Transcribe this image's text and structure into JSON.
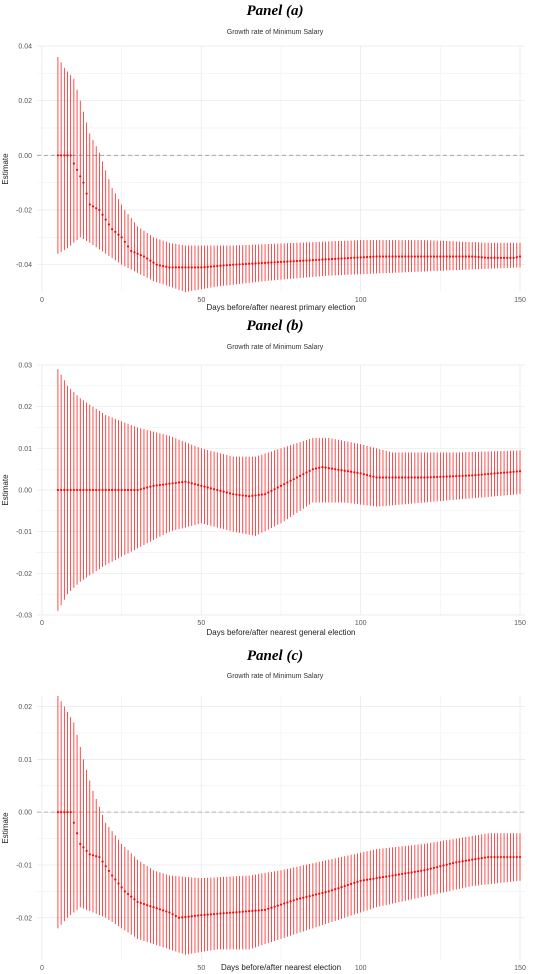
{
  "chart_data": [
    {
      "type": "scatter",
      "panel_title": "Panel (a)",
      "title": "Growth rate of Minimum Salary",
      "xlabel": "Days before/after nearest primary election",
      "ylabel": "Estimate",
      "xlim": [
        0,
        150
      ],
      "ylim": [
        -0.05,
        0.04
      ],
      "x_ticks": [
        "0",
        "50",
        "100",
        "150"
      ],
      "y_ticks": [
        "0.04",
        "0.02",
        "0.00",
        "-0.02",
        "-0.04"
      ],
      "y_tick_values": [
        0.04,
        0.02,
        0.0,
        -0.02,
        -0.04
      ],
      "reference_line": 0,
      "color": "#ff0000",
      "x_start": 5,
      "x_end": 150,
      "estimate_knots": [
        [
          5,
          0
        ],
        [
          9,
          0
        ],
        [
          10,
          -0.003
        ],
        [
          13,
          -0.01
        ],
        [
          15,
          -0.018
        ],
        [
          18,
          -0.02
        ],
        [
          22,
          -0.027
        ],
        [
          25,
          -0.03
        ],
        [
          28,
          -0.035
        ],
        [
          32,
          -0.037
        ],
        [
          36,
          -0.04
        ],
        [
          40,
          -0.041
        ],
        [
          50,
          -0.041
        ],
        [
          60,
          -0.04
        ],
        [
          75,
          -0.039
        ],
        [
          90,
          -0.038
        ],
        [
          105,
          -0.037
        ],
        [
          120,
          -0.037
        ],
        [
          135,
          -0.037
        ],
        [
          140,
          -0.0375
        ],
        [
          148,
          -0.0375
        ],
        [
          150,
          -0.037
        ]
      ],
      "lower_knots": [
        [
          5,
          -0.036
        ],
        [
          8,
          -0.034
        ],
        [
          12,
          -0.03
        ],
        [
          15,
          -0.032
        ],
        [
          20,
          -0.036
        ],
        [
          25,
          -0.04
        ],
        [
          30,
          -0.043
        ],
        [
          35,
          -0.046
        ],
        [
          40,
          -0.048
        ],
        [
          45,
          -0.05
        ],
        [
          55,
          -0.048
        ],
        [
          70,
          -0.046
        ],
        [
          90,
          -0.044
        ],
        [
          110,
          -0.043
        ],
        [
          130,
          -0.042
        ],
        [
          150,
          -0.041
        ]
      ],
      "upper_knots": [
        [
          5,
          0.036
        ],
        [
          7,
          0.032
        ],
        [
          10,
          0.028
        ],
        [
          12,
          0.02
        ],
        [
          15,
          0.008
        ],
        [
          18,
          0.001
        ],
        [
          22,
          -0.012
        ],
        [
          26,
          -0.02
        ],
        [
          30,
          -0.026
        ],
        [
          35,
          -0.03
        ],
        [
          40,
          -0.032
        ],
        [
          45,
          -0.033
        ],
        [
          60,
          -0.033
        ],
        [
          80,
          -0.032
        ],
        [
          100,
          -0.031
        ],
        [
          120,
          -0.031
        ],
        [
          140,
          -0.032
        ],
        [
          150,
          -0.032
        ]
      ]
    },
    {
      "type": "scatter",
      "panel_title": "Panel (b)",
      "title": "Growth rate of Minimum Salary",
      "xlabel": "Days before/after nearest general election",
      "ylabel": "Estimate",
      "xlim": [
        0,
        150
      ],
      "ylim": [
        -0.03,
        0.03
      ],
      "x_ticks": [
        "0",
        "50",
        "100",
        "150"
      ],
      "y_ticks": [
        "0.03",
        "0.02",
        "0.01",
        "0.00",
        "-0.01",
        "-0.02",
        "-0.03"
      ],
      "y_tick_values": [
        0.03,
        0.02,
        0.01,
        0.0,
        -0.01,
        -0.02,
        -0.03
      ],
      "reference_line": null,
      "color": "#ff0000",
      "x_start": 5,
      "x_end": 150,
      "estimate_knots": [
        [
          5,
          0
        ],
        [
          30,
          0
        ],
        [
          35,
          0.001
        ],
        [
          40,
          0.0015
        ],
        [
          45,
          0.002
        ],
        [
          50,
          0.001
        ],
        [
          55,
          0
        ],
        [
          60,
          -0.001
        ],
        [
          65,
          -0.0015
        ],
        [
          70,
          -0.001
        ],
        [
          75,
          0.001
        ],
        [
          80,
          0.003
        ],
        [
          85,
          0.005
        ],
        [
          88,
          0.0055
        ],
        [
          92,
          0.005
        ],
        [
          100,
          0.004
        ],
        [
          105,
          0.003
        ],
        [
          120,
          0.003
        ],
        [
          135,
          0.0035
        ],
        [
          150,
          0.0045
        ]
      ],
      "lower_knots": [
        [
          5,
          -0.029
        ],
        [
          8,
          -0.025
        ],
        [
          12,
          -0.022
        ],
        [
          20,
          -0.018
        ],
        [
          30,
          -0.014
        ],
        [
          40,
          -0.01
        ],
        [
          50,
          -0.008
        ],
        [
          60,
          -0.01
        ],
        [
          67,
          -0.011
        ],
        [
          75,
          -0.008
        ],
        [
          85,
          -0.003
        ],
        [
          95,
          -0.003
        ],
        [
          105,
          -0.004
        ],
        [
          120,
          -0.003
        ],
        [
          135,
          -0.002
        ],
        [
          150,
          -0.001
        ]
      ],
      "upper_knots": [
        [
          5,
          0.029
        ],
        [
          8,
          0.025
        ],
        [
          12,
          0.022
        ],
        [
          20,
          0.018
        ],
        [
          30,
          0.015
        ],
        [
          40,
          0.013
        ],
        [
          50,
          0.01
        ],
        [
          60,
          0.008
        ],
        [
          67,
          0.008
        ],
        [
          75,
          0.01
        ],
        [
          85,
          0.0125
        ],
        [
          90,
          0.0125
        ],
        [
          100,
          0.011
        ],
        [
          110,
          0.009
        ],
        [
          130,
          0.009
        ],
        [
          150,
          0.0095
        ]
      ]
    },
    {
      "type": "scatter",
      "panel_title": "Panel (c)",
      "title": "Growth rate of Minimum Salary",
      "xlabel": "Days before/after nearest election",
      "ylabel": "Estimate",
      "xlim": [
        0,
        150
      ],
      "ylim": [
        -0.028,
        0.022
      ],
      "x_ticks": [
        "0",
        "50",
        "100",
        "150"
      ],
      "y_ticks": [
        "0.02",
        "0.01",
        "0.00",
        "-0.01",
        "-0.02"
      ],
      "y_tick_values": [
        0.02,
        0.01,
        0.0,
        -0.01,
        -0.02
      ],
      "reference_line": 0,
      "color": "#ff0000",
      "x_start": 5,
      "x_end": 150,
      "estimate_knots": [
        [
          5,
          0
        ],
        [
          9,
          0
        ],
        [
          10,
          -0.002
        ],
        [
          12,
          -0.006
        ],
        [
          15,
          -0.008
        ],
        [
          18,
          -0.0085
        ],
        [
          22,
          -0.012
        ],
        [
          26,
          -0.015
        ],
        [
          30,
          -0.017
        ],
        [
          35,
          -0.018
        ],
        [
          40,
          -0.019
        ],
        [
          43,
          -0.02
        ],
        [
          50,
          -0.0195
        ],
        [
          60,
          -0.019
        ],
        [
          70,
          -0.0185
        ],
        [
          80,
          -0.0165
        ],
        [
          90,
          -0.015
        ],
        [
          100,
          -0.013
        ],
        [
          110,
          -0.012
        ],
        [
          120,
          -0.011
        ],
        [
          130,
          -0.0095
        ],
        [
          140,
          -0.0085
        ],
        [
          150,
          -0.0085
        ]
      ],
      "lower_knots": [
        [
          5,
          -0.022
        ],
        [
          8,
          -0.02
        ],
        [
          12,
          -0.018
        ],
        [
          20,
          -0.02
        ],
        [
          30,
          -0.024
        ],
        [
          40,
          -0.026
        ],
        [
          45,
          -0.027
        ],
        [
          55,
          -0.026
        ],
        [
          65,
          -0.026
        ],
        [
          75,
          -0.024
        ],
        [
          90,
          -0.021
        ],
        [
          105,
          -0.018
        ],
        [
          120,
          -0.016
        ],
        [
          135,
          -0.014
        ],
        [
          150,
          -0.013
        ]
      ],
      "upper_knots": [
        [
          5,
          0.022
        ],
        [
          7,
          0.02
        ],
        [
          10,
          0.017
        ],
        [
          13,
          0.01
        ],
        [
          16,
          0.004
        ],
        [
          20,
          -0.002
        ],
        [
          25,
          -0.006
        ],
        [
          30,
          -0.009
        ],
        [
          35,
          -0.011
        ],
        [
          40,
          -0.012
        ],
        [
          50,
          -0.0125
        ],
        [
          65,
          -0.012
        ],
        [
          75,
          -0.011
        ],
        [
          90,
          -0.009
        ],
        [
          105,
          -0.007
        ],
        [
          120,
          -0.006
        ],
        [
          130,
          -0.005
        ],
        [
          140,
          -0.004
        ],
        [
          150,
          -0.004
        ]
      ]
    }
  ]
}
